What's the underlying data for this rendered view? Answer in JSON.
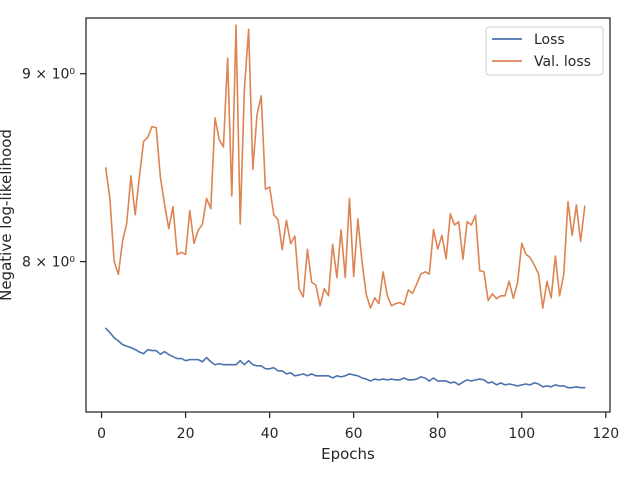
{
  "chart_data": {
    "type": "line",
    "title": "",
    "xlabel": "Epochs",
    "ylabel": "Negative log-likelihood",
    "yscale": "log",
    "xlim": [
      -3.7,
      121.0
    ],
    "ylim": [
      7.28,
      9.32
    ],
    "x_ticks": [
      0,
      20,
      40,
      60,
      80,
      100,
      120
    ],
    "y_ticks": [
      {
        "value": 8.0,
        "label": "8 × 10⁰"
      },
      {
        "value": 9.0,
        "label": "9 × 10⁰"
      }
    ],
    "grid": false,
    "legend": "top-right",
    "x": [
      1,
      2,
      3,
      4,
      5,
      6,
      7,
      8,
      9,
      10,
      11,
      12,
      13,
      14,
      15,
      16,
      17,
      18,
      19,
      20,
      21,
      22,
      23,
      24,
      25,
      26,
      27,
      28,
      29,
      30,
      31,
      32,
      33,
      34,
      35,
      36,
      37,
      38,
      39,
      40,
      41,
      42,
      43,
      44,
      45,
      46,
      47,
      48,
      49,
      50,
      51,
      52,
      53,
      54,
      55,
      56,
      57,
      58,
      59,
      60,
      61,
      62,
      63,
      64,
      65,
      66,
      67,
      68,
      69,
      70,
      71,
      72,
      73,
      74,
      75,
      76,
      77,
      78,
      79,
      80,
      81,
      82,
      83,
      84,
      85,
      86,
      87,
      88,
      89,
      90,
      91,
      92,
      93,
      94,
      95,
      96,
      97,
      98,
      99,
      100,
      101,
      102,
      103,
      104,
      105,
      106,
      107,
      108,
      109,
      110,
      111,
      112,
      113,
      114,
      115
    ],
    "series": [
      {
        "name": "Loss",
        "color": "#4c72b0",
        "values": [
          7.672,
          7.652,
          7.627,
          7.612,
          7.594,
          7.587,
          7.58,
          7.571,
          7.559,
          7.551,
          7.57,
          7.566,
          7.566,
          7.548,
          7.561,
          7.547,
          7.537,
          7.528,
          7.528,
          7.518,
          7.523,
          7.523,
          7.523,
          7.513,
          7.533,
          7.513,
          7.499,
          7.504,
          7.499,
          7.499,
          7.499,
          7.499,
          7.518,
          7.499,
          7.518,
          7.499,
          7.494,
          7.494,
          7.48,
          7.48,
          7.485,
          7.47,
          7.47,
          7.456,
          7.461,
          7.447,
          7.451,
          7.456,
          7.447,
          7.456,
          7.447,
          7.447,
          7.447,
          7.447,
          7.437,
          7.447,
          7.442,
          7.447,
          7.456,
          7.451,
          7.447,
          7.437,
          7.432,
          7.423,
          7.432,
          7.428,
          7.432,
          7.428,
          7.432,
          7.428,
          7.428,
          7.437,
          7.428,
          7.428,
          7.432,
          7.442,
          7.437,
          7.423,
          7.437,
          7.423,
          7.423,
          7.423,
          7.414,
          7.418,
          7.405,
          7.418,
          7.428,
          7.423,
          7.428,
          7.432,
          7.428,
          7.414,
          7.418,
          7.405,
          7.414,
          7.405,
          7.409,
          7.405,
          7.4,
          7.405,
          7.409,
          7.405,
          7.414,
          7.409,
          7.396,
          7.4,
          7.396,
          7.405,
          7.4,
          7.4,
          7.392,
          7.392,
          7.396,
          7.392,
          7.392
        ]
      },
      {
        "name": "Val. loss",
        "color": "#dd8452",
        "values": [
          8.484,
          8.318,
          8.0,
          7.936,
          8.103,
          8.196,
          8.442,
          8.238,
          8.436,
          8.625,
          8.649,
          8.706,
          8.701,
          8.435,
          8.291,
          8.167,
          8.28,
          8.036,
          8.046,
          8.036,
          8.26,
          8.092,
          8.159,
          8.189,
          8.323,
          8.27,
          8.754,
          8.636,
          8.596,
          9.088,
          8.336,
          9.278,
          8.191,
          8.916,
          9.254,
          8.476,
          8.771,
          8.876,
          8.371,
          8.383,
          8.238,
          8.213,
          8.061,
          8.21,
          8.09,
          8.129,
          7.865,
          7.825,
          8.061,
          7.897,
          7.883,
          7.781,
          7.865,
          7.831,
          8.087,
          7.92,
          8.16,
          7.92,
          8.323,
          7.926,
          8.217,
          7.996,
          7.836,
          7.77,
          7.82,
          7.792,
          7.949,
          7.831,
          7.781,
          7.792,
          7.797,
          7.786,
          7.859,
          7.842,
          7.888,
          7.938,
          7.949,
          7.938,
          8.162,
          8.063,
          8.132,
          8.014,
          8.243,
          8.186,
          8.202,
          8.012,
          8.202,
          8.186,
          8.235,
          7.954,
          7.949,
          7.807,
          7.84,
          7.816,
          7.83,
          7.83,
          7.902,
          7.818,
          7.894,
          8.092,
          8.037,
          8.02,
          7.982,
          7.938,
          7.77,
          7.901,
          7.82,
          8.028,
          7.83,
          7.938,
          8.306,
          8.132,
          8.289,
          8.103,
          8.282
        ]
      }
    ]
  }
}
